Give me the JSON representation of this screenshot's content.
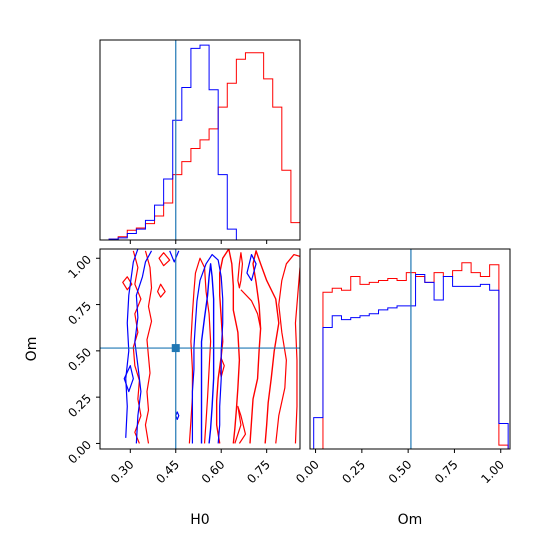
{
  "chart_data": {
    "type": "corner",
    "parameters": [
      "H0",
      "Om"
    ],
    "axis_labels": {
      "x_H0": "H0",
      "x_Om": "Om",
      "y_Om": "Om"
    },
    "truth": {
      "H0": 0.45,
      "Om": 0.515
    },
    "colors": {
      "red": "#ff0000",
      "blue": "#0000ff",
      "truth": "#1f77b4"
    },
    "H0_axis": {
      "range": [
        0.2,
        0.86
      ],
      "ticks": [
        0.3,
        0.45,
        0.6,
        0.75
      ],
      "tick_labels": [
        "0.30",
        "0.45",
        "0.60",
        "0.75"
      ]
    },
    "Om_axis": {
      "range": [
        -0.03,
        1.05
      ],
      "ticks": [
        0.0,
        0.25,
        0.5,
        0.75,
        1.0
      ],
      "tick_labels": [
        "0.00",
        "0.25",
        "0.50",
        "0.75",
        "1.00"
      ]
    },
    "hist_H0": {
      "edges": [
        0.23,
        0.26,
        0.29,
        0.32,
        0.35,
        0.38,
        0.41,
        0.44,
        0.47,
        0.5,
        0.53,
        0.56,
        0.59,
        0.62,
        0.65,
        0.68,
        0.71,
        0.74,
        0.77,
        0.8,
        0.83,
        0.86
      ],
      "series": [
        {
          "color": "red",
          "values": [
            0.4,
            1.5,
            4.5,
            5.5,
            7.5,
            11.0,
            17.0,
            30.0,
            36.0,
            42.0,
            46.0,
            51.0,
            61.0,
            72.0,
            83.0,
            86.0,
            86.0,
            74.0,
            61.0,
            32.0,
            8.0
          ]
        },
        {
          "color": "blue",
          "values": [
            0.4,
            1.0,
            3.0,
            5.0,
            9.0,
            16.0,
            28.0,
            55.0,
            70.0,
            88.0,
            89.5,
            69.0,
            30.0,
            5.0,
            0.0,
            0.0,
            0.0,
            0.0,
            0.0,
            0.0,
            0.0
          ]
        }
      ]
    },
    "hist_Om": {
      "edges": [
        -0.01,
        0.04,
        0.09,
        0.14,
        0.19,
        0.24,
        0.29,
        0.34,
        0.39,
        0.44,
        0.49,
        0.54,
        0.59,
        0.64,
        0.69,
        0.74,
        0.79,
        0.84,
        0.89,
        0.94,
        0.99,
        1.04
      ],
      "series": [
        {
          "color": "red",
          "values": [
            0,
            80,
            82,
            81,
            88,
            84,
            85,
            86,
            87,
            86,
            90,
            88,
            85,
            90,
            88,
            91,
            95,
            90,
            88,
            94,
            2
          ]
        },
        {
          "color": "blue",
          "values": [
            16,
            62,
            68,
            66,
            67,
            68,
            69,
            71,
            72,
            73,
            73,
            89,
            85,
            76,
            88,
            83,
            83,
            83,
            84,
            81,
            13
          ]
        }
      ]
    },
    "contours_2d": [
      {
        "color": "red",
        "level": "inner",
        "points": [
          [
            0.595,
            0.0
          ],
          [
            0.585,
            0.1
          ],
          [
            0.585,
            0.23
          ],
          [
            0.59,
            0.35
          ],
          [
            0.6,
            0.47
          ],
          [
            0.605,
            0.55
          ],
          [
            0.6,
            0.68
          ],
          [
            0.595,
            0.8
          ],
          [
            0.595,
            0.92
          ],
          [
            0.605,
            1.0
          ],
          [
            0.625,
            1.05
          ],
          [
            0.635,
            0.97
          ],
          [
            0.64,
            0.85
          ],
          [
            0.64,
            0.72
          ],
          [
            0.655,
            0.6
          ],
          [
            0.66,
            0.45
          ],
          [
            0.655,
            0.3
          ],
          [
            0.65,
            0.18
          ],
          [
            0.645,
            0.08
          ],
          [
            0.64,
            0.0
          ]
        ],
        "closed": false
      },
      {
        "color": "red",
        "level": "inner",
        "points": [
          [
            0.695,
            0.0
          ],
          [
            0.7,
            0.12
          ],
          [
            0.705,
            0.24
          ],
          [
            0.72,
            0.35
          ],
          [
            0.725,
            0.5
          ],
          [
            0.73,
            0.62
          ],
          [
            0.725,
            0.75
          ],
          [
            0.715,
            0.87
          ],
          [
            0.705,
            0.97
          ],
          [
            0.715,
            1.04
          ],
          [
            0.73,
            0.97
          ],
          [
            0.75,
            0.88
          ],
          [
            0.78,
            0.78
          ],
          [
            0.79,
            0.65
          ],
          [
            0.775,
            0.5
          ],
          [
            0.765,
            0.35
          ],
          [
            0.755,
            0.22
          ],
          [
            0.75,
            0.1
          ],
          [
            0.745,
            0.0
          ]
        ],
        "closed": false
      },
      {
        "color": "red",
        "level": "outer",
        "points": [
          [
            0.495,
            0.0
          ],
          [
            0.5,
            0.12
          ],
          [
            0.505,
            0.25
          ],
          [
            0.505,
            0.4
          ],
          [
            0.5,
            0.55
          ],
          [
            0.505,
            0.7
          ],
          [
            0.51,
            0.82
          ],
          [
            0.515,
            0.92
          ],
          [
            0.53,
            1.0
          ],
          [
            0.545,
            0.95
          ],
          [
            0.55,
            0.82
          ],
          [
            0.56,
            0.7
          ],
          [
            0.565,
            0.55
          ],
          [
            0.56,
            0.4
          ],
          [
            0.555,
            0.25
          ],
          [
            0.55,
            0.12
          ],
          [
            0.545,
            0.0
          ]
        ],
        "closed": false
      },
      {
        "color": "red",
        "level": "outer",
        "points": [
          [
            0.78,
            0.0
          ],
          [
            0.79,
            0.15
          ],
          [
            0.81,
            0.3
          ],
          [
            0.815,
            0.45
          ],
          [
            0.8,
            0.6
          ],
          [
            0.79,
            0.75
          ],
          [
            0.8,
            0.88
          ],
          [
            0.815,
            0.97
          ],
          [
            0.84,
            1.02
          ],
          [
            0.86,
            1.01
          ]
        ],
        "closed": false
      },
      {
        "color": "red",
        "level": "outer",
        "points": [
          [
            0.845,
            0.0
          ],
          [
            0.85,
            0.2
          ],
          [
            0.85,
            0.45
          ],
          [
            0.845,
            0.65
          ],
          [
            0.855,
            0.85
          ],
          [
            0.86,
            0.95
          ]
        ],
        "closed": false
      },
      {
        "color": "red",
        "level": "outer",
        "points": [
          [
            0.655,
            0.88
          ],
          [
            0.66,
            0.97
          ],
          [
            0.665,
            1.03
          ],
          [
            0.67,
            0.97
          ],
          [
            0.665,
            0.88
          ],
          [
            0.66,
            0.84
          ],
          [
            0.655,
            0.88
          ]
        ],
        "closed": true
      },
      {
        "color": "red",
        "level": "outer",
        "points": [
          [
            0.595,
            0.4
          ],
          [
            0.6,
            0.46
          ],
          [
            0.61,
            0.42
          ],
          [
            0.6,
            0.36
          ],
          [
            0.595,
            0.4
          ]
        ],
        "closed": true
      },
      {
        "color": "red",
        "level": "outer",
        "points": [
          [
            0.645,
            0.0
          ],
          [
            0.665,
            0.1
          ],
          [
            0.655,
            0.2
          ],
          [
            0.665,
            0.15
          ],
          [
            0.68,
            0.05
          ],
          [
            0.66,
            0.0
          ]
        ],
        "closed": false
      },
      {
        "color": "red",
        "level": "outer",
        "points": [
          [
            0.665,
            0.83
          ],
          [
            0.7,
            0.77
          ],
          [
            0.72,
            0.7
          ],
          [
            0.73,
            0.62
          ]
        ],
        "closed": false
      },
      {
        "color": "red",
        "level": "outer",
        "points": [
          [
            0.31,
            1.04
          ],
          [
            0.325,
            0.95
          ],
          [
            0.315,
            0.86
          ],
          [
            0.335,
            0.78
          ],
          [
            0.315,
            0.7
          ],
          [
            0.325,
            0.6
          ],
          [
            0.31,
            0.52
          ],
          [
            0.315,
            0.42
          ],
          [
            0.33,
            0.34
          ],
          [
            0.325,
            0.24
          ],
          [
            0.335,
            0.15
          ],
          [
            0.315,
            0.06
          ],
          [
            0.33,
            0.0
          ]
        ],
        "closed": false
      },
      {
        "color": "red",
        "level": "outer",
        "points": [
          [
            0.35,
            1.04
          ],
          [
            0.365,
            0.95
          ],
          [
            0.37,
            0.84
          ],
          [
            0.36,
            0.74
          ],
          [
            0.37,
            0.66
          ],
          [
            0.355,
            0.56
          ],
          [
            0.36,
            0.47
          ],
          [
            0.365,
            0.38
          ],
          [
            0.355,
            0.28
          ],
          [
            0.36,
            0.18
          ],
          [
            0.35,
            0.1
          ],
          [
            0.36,
            0.0
          ]
        ],
        "closed": false
      },
      {
        "color": "red",
        "level": "outer",
        "points": [
          [
            0.275,
            0.87
          ],
          [
            0.29,
            0.9
          ],
          [
            0.305,
            0.86
          ],
          [
            0.29,
            0.83
          ],
          [
            0.275,
            0.87
          ]
        ],
        "closed": true
      },
      {
        "color": "red",
        "level": "outer",
        "points": [
          [
            0.395,
            1.0
          ],
          [
            0.41,
            1.03
          ],
          [
            0.43,
            0.99
          ],
          [
            0.41,
            0.96
          ],
          [
            0.395,
            1.0
          ]
        ],
        "closed": true
      },
      {
        "color": "red",
        "level": "outer",
        "points": [
          [
            0.39,
            0.82
          ],
          [
            0.4,
            0.86
          ],
          [
            0.415,
            0.82
          ],
          [
            0.4,
            0.79
          ],
          [
            0.39,
            0.82
          ]
        ],
        "closed": true
      },
      {
        "color": "blue",
        "level": "inner",
        "points": [
          [
            0.535,
            0.0
          ],
          [
            0.535,
            0.12
          ],
          [
            0.535,
            0.25
          ],
          [
            0.535,
            0.4
          ],
          [
            0.535,
            0.55
          ],
          [
            0.545,
            0.68
          ],
          [
            0.555,
            0.8
          ],
          [
            0.56,
            0.9
          ],
          [
            0.565,
            0.97
          ],
          [
            0.57,
            0.9
          ],
          [
            0.575,
            0.78
          ],
          [
            0.575,
            0.65
          ],
          [
            0.575,
            0.5
          ],
          [
            0.575,
            0.35
          ],
          [
            0.57,
            0.2
          ],
          [
            0.565,
            0.08
          ],
          [
            0.56,
            0.0
          ]
        ],
        "closed": false
      },
      {
        "color": "blue",
        "level": "outer",
        "points": [
          [
            0.32,
            0.0
          ],
          [
            0.325,
            0.15
          ],
          [
            0.335,
            0.28
          ],
          [
            0.325,
            0.42
          ],
          [
            0.315,
            0.55
          ],
          [
            0.325,
            0.68
          ],
          [
            0.32,
            0.8
          ],
          [
            0.34,
            0.9
          ],
          [
            0.35,
            0.98
          ],
          [
            0.37,
            1.04
          ]
        ],
        "closed": false
      },
      {
        "color": "blue",
        "level": "outer",
        "points": [
          [
            0.285,
            0.03
          ],
          [
            0.29,
            0.2
          ],
          [
            0.285,
            0.35
          ],
          [
            0.295,
            0.5
          ],
          [
            0.29,
            0.65
          ],
          [
            0.295,
            0.8
          ],
          [
            0.31,
            0.98
          ],
          [
            0.325,
            1.05
          ]
        ],
        "closed": false
      },
      {
        "color": "blue",
        "level": "outer",
        "points": [
          [
            0.28,
            0.35
          ],
          [
            0.3,
            0.42
          ],
          [
            0.31,
            0.35
          ],
          [
            0.295,
            0.28
          ],
          [
            0.28,
            0.35
          ]
        ],
        "closed": true
      },
      {
        "color": "blue",
        "level": "outer",
        "points": [
          [
            0.505,
            0.0
          ],
          [
            0.505,
            0.15
          ],
          [
            0.505,
            0.28
          ],
          [
            0.51,
            0.4
          ],
          [
            0.51,
            0.52
          ],
          [
            0.515,
            0.65
          ],
          [
            0.52,
            0.77
          ],
          [
            0.53,
            0.88
          ],
          [
            0.55,
            0.97
          ],
          [
            0.57,
            1.02
          ],
          [
            0.59,
            0.99
          ],
          [
            0.6,
            0.9
          ],
          [
            0.605,
            0.78
          ],
          [
            0.605,
            0.65
          ],
          [
            0.6,
            0.5
          ],
          [
            0.6,
            0.35
          ],
          [
            0.595,
            0.2
          ],
          [
            0.595,
            0.1
          ],
          [
            0.59,
            0.0
          ]
        ],
        "closed": false
      },
      {
        "color": "blue",
        "level": "outer",
        "points": [
          [
            0.43,
            1.04
          ],
          [
            0.445,
            0.98
          ],
          [
            0.46,
            1.04
          ]
        ],
        "closed": false
      },
      {
        "color": "blue",
        "level": "outer",
        "points": [
          [
            0.685,
            0.92
          ],
          [
            0.7,
            1.02
          ],
          [
            0.715,
            0.97
          ],
          [
            0.7,
            0.88
          ],
          [
            0.685,
            0.92
          ]
        ],
        "closed": true
      },
      {
        "color": "blue",
        "level": "outer",
        "points": [
          [
            0.45,
            0.15
          ],
          [
            0.455,
            0.17
          ],
          [
            0.46,
            0.15
          ],
          [
            0.455,
            0.13
          ],
          [
            0.45,
            0.15
          ]
        ],
        "closed": true
      }
    ]
  }
}
